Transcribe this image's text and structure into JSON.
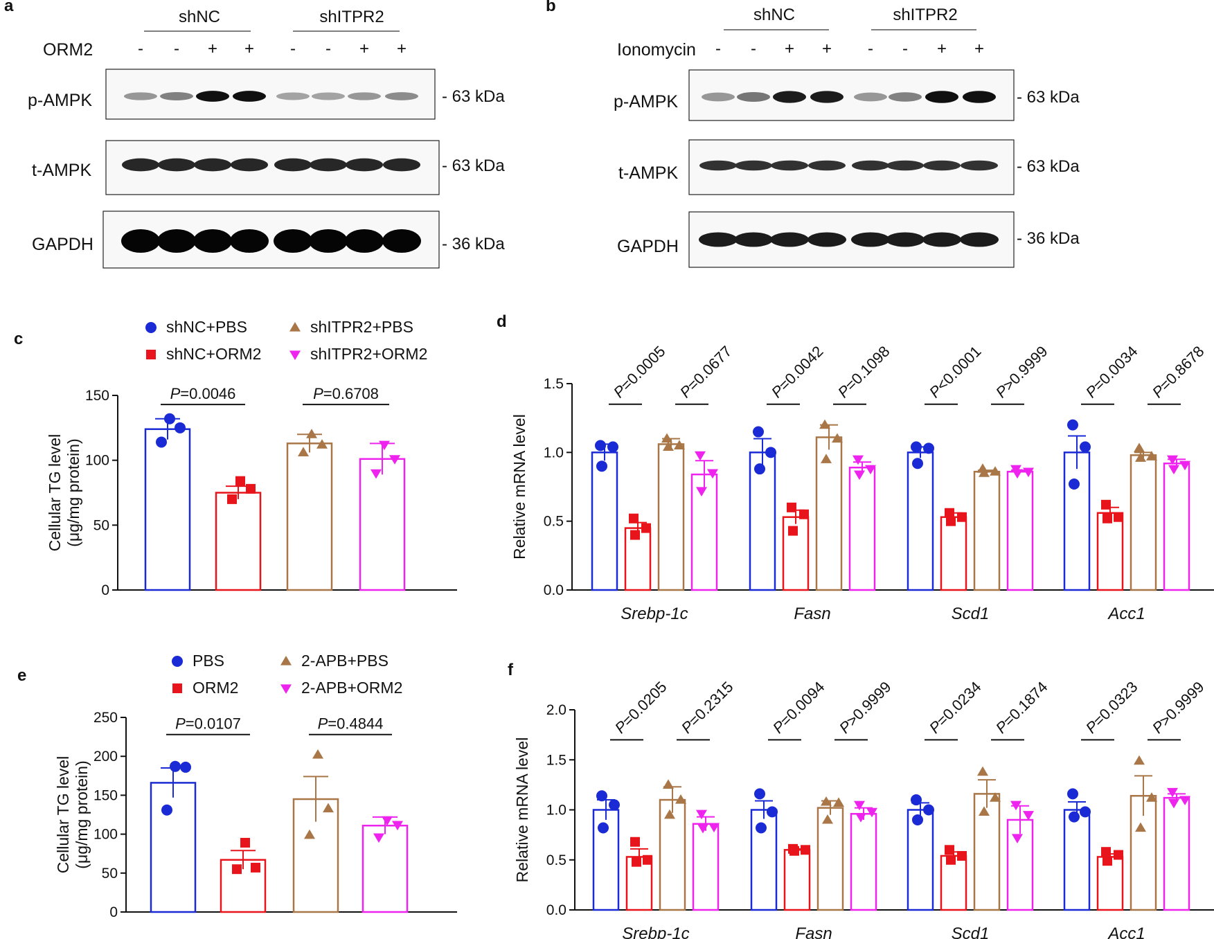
{
  "colors": {
    "blue": "#1a2bd6",
    "red": "#e8141b",
    "brown": "#a87647",
    "magenta": "#ee23ee",
    "dot_blue": "#1f3dde"
  },
  "panel_a": {
    "letter": "a",
    "group_labels": [
      "shNC",
      "shITPR2"
    ],
    "treatment_label": "ORM2",
    "signs": [
      "-",
      "-",
      "+",
      "+",
      "-",
      "-",
      "+",
      "+"
    ],
    "bands": [
      {
        "label": "p-AMPK",
        "kda": "- 63 kDa"
      },
      {
        "label": "t-AMPK",
        "kda": "- 63 kDa"
      },
      {
        "label": "GAPDH",
        "kda": "- 36 kDa"
      }
    ],
    "band_intensity": [
      [
        0.35,
        0.45,
        0.95,
        0.95,
        0.3,
        0.3,
        0.35,
        0.4
      ],
      [
        0.85,
        0.85,
        0.85,
        0.85,
        0.85,
        0.85,
        0.85,
        0.85
      ],
      [
        1,
        1,
        1,
        1,
        1,
        1,
        1,
        1
      ]
    ]
  },
  "panel_b": {
    "letter": "b",
    "group_labels": [
      "shNC",
      "shITPR2"
    ],
    "treatment_label": "Ionomycin",
    "signs": [
      "-",
      "-",
      "+",
      "+",
      "-",
      "-",
      "+",
      "+"
    ],
    "bands": [
      {
        "label": "p-AMPK",
        "kda": "- 63 kDa"
      },
      {
        "label": "t-AMPK",
        "kda": "- 63 kDa"
      },
      {
        "label": "GAPDH",
        "kda": "- 36 kDa"
      }
    ],
    "band_intensity": [
      [
        0.35,
        0.5,
        0.9,
        0.9,
        0.35,
        0.45,
        0.95,
        0.95
      ],
      [
        0.8,
        0.8,
        0.8,
        0.8,
        0.8,
        0.8,
        0.8,
        0.8
      ],
      [
        0.9,
        0.9,
        0.9,
        0.9,
        0.9,
        0.9,
        0.9,
        0.9
      ]
    ]
  },
  "chart_data": [
    {
      "panel": "c",
      "type": "bar",
      "ylabel": "Cellular TG level",
      "ylabel2": "(μg/mg protein)",
      "ylim": [
        0,
        150
      ],
      "yticks": [
        "0",
        "50",
        "100",
        "150"
      ],
      "legend": [
        "shNC+PBS",
        "shNC+ORM2",
        "shITPR2+PBS",
        "shITPR2+ORM2"
      ],
      "series": [
        {
          "name": "shNC+PBS",
          "value": 124,
          "sem": 8,
          "points": [
            132,
            125,
            114
          ]
        },
        {
          "name": "shNC+ORM2",
          "value": 75,
          "sem": 5,
          "points": [
            84,
            78,
            70
          ]
        },
        {
          "name": "shITPR2+PBS",
          "value": 113,
          "sem": 7,
          "points": [
            120,
            112,
            106
          ]
        },
        {
          "name": "shITPR2+ORM2",
          "value": 101,
          "sem": 12,
          "points": [
            112,
            101,
            90
          ]
        }
      ],
      "comparisons": [
        {
          "italic": "P",
          "rest": "=0.0046",
          "pair": [
            0,
            1
          ],
          "y": 143
        },
        {
          "italic": "P",
          "rest": "=0.6708",
          "pair": [
            2,
            3
          ],
          "y": 143
        }
      ]
    },
    {
      "panel": "d",
      "type": "bar",
      "ylabel": "Relative  mRNA level",
      "ylim": [
        0,
        1.5
      ],
      "yticks": [
        "0.0",
        "0.5",
        "1.0",
        "1.5"
      ],
      "categories": [
        "Srebp-1c",
        "Fasn",
        "Scd1",
        "Acc1"
      ],
      "groups": [
        {
          "values": [
            1.0,
            0.45,
            1.06,
            0.84
          ],
          "sem": [
            0.06,
            0.04,
            0.04,
            0.1
          ],
          "points": [
            [
              1.05,
              1.04,
              0.9
            ],
            [
              0.52,
              0.45,
              0.4
            ],
            [
              1.1,
              1.05,
              1.04
            ],
            [
              0.98,
              0.85,
              0.72
            ]
          ]
        },
        {
          "values": [
            1.0,
            0.53,
            1.11,
            0.89
          ],
          "sem": [
            0.1,
            0.05,
            0.09,
            0.04
          ],
          "points": [
            [
              1.15,
              1.0,
              0.88
            ],
            [
              0.6,
              0.55,
              0.43
            ],
            [
              1.2,
              1.1,
              0.95
            ],
            [
              0.95,
              0.88,
              0.84
            ]
          ]
        },
        {
          "values": [
            1.0,
            0.53,
            0.86,
            0.86
          ],
          "sem": [
            0.04,
            0.03,
            0.01,
            0.01
          ],
          "points": [
            [
              1.04,
              1.03,
              0.92
            ],
            [
              0.56,
              0.53,
              0.5
            ],
            [
              0.88,
              0.86,
              0.85
            ],
            [
              0.88,
              0.86,
              0.85
            ]
          ]
        },
        {
          "values": [
            1.0,
            0.56,
            0.98,
            0.92
          ],
          "sem": [
            0.12,
            0.04,
            0.02,
            0.03
          ],
          "points": [
            [
              1.2,
              1.04,
              0.77
            ],
            [
              0.62,
              0.53,
              0.52
            ],
            [
              1.03,
              0.97,
              0.96
            ],
            [
              0.95,
              0.91,
              0.88
            ]
          ]
        }
      ],
      "pvalues": [
        {
          "italic": "P",
          "rest": "=0.0005"
        },
        {
          "italic": "P",
          "rest": "=0.0677"
        },
        {
          "italic": "P",
          "rest": "=0.0042"
        },
        {
          "italic": "P",
          "rest": "=0.1098"
        },
        {
          "italic": "P",
          "rest": "<0.0001"
        },
        {
          "italic": "P",
          "rest": ">0.9999"
        },
        {
          "italic": "P",
          "rest": "=0.0034"
        },
        {
          "italic": "P",
          "rest": "=0.8678"
        }
      ],
      "p_y": 1.35
    },
    {
      "panel": "e",
      "type": "bar",
      "ylabel": "Cellular TG level",
      "ylabel2": "(μg/mg protein)",
      "ylim": [
        0,
        250
      ],
      "yticks": [
        "0",
        "50",
        "100",
        "150",
        "200",
        "250"
      ],
      "legend": [
        "PBS",
        "ORM2",
        "2-APB+PBS",
        "2-APB+ORM2"
      ],
      "series": [
        {
          "name": "PBS",
          "value": 166,
          "sem": 19,
          "points": [
            187,
            186,
            131
          ]
        },
        {
          "name": "ORM2",
          "value": 67,
          "sem": 12,
          "points": [
            89,
            57,
            55
          ]
        },
        {
          "name": "2-APB+PBS",
          "value": 145,
          "sem": 29,
          "points": [
            202,
            133,
            99
          ]
        },
        {
          "name": "2-APB+ORM2",
          "value": 111,
          "sem": 11,
          "points": [
            118,
            112,
            96
          ]
        }
      ],
      "comparisons": [
        {
          "italic": "P",
          "rest": "=0.0107",
          "pair": [
            0,
            1
          ],
          "y": 228
        },
        {
          "italic": "P",
          "rest": "=0.4844",
          "pair": [
            2,
            3
          ],
          "y": 228
        }
      ]
    },
    {
      "panel": "f",
      "type": "bar",
      "ylabel": "Relative  mRNA level",
      "ylim": [
        0,
        2.0
      ],
      "yticks": [
        "0.0",
        "0.5",
        "1.0",
        "1.5",
        "2.0"
      ],
      "categories": [
        "Srebp-1c",
        "Fasn",
        "Scd1",
        "Acc1"
      ],
      "groups": [
        {
          "values": [
            1.0,
            0.53,
            1.1,
            0.86
          ],
          "sem": [
            0.1,
            0.08,
            0.13,
            0.07
          ],
          "points": [
            [
              1.14,
              1.05,
              0.82
            ],
            [
              0.68,
              0.5,
              0.48
            ],
            [
              1.25,
              1.1,
              0.95
            ],
            [
              0.96,
              0.83,
              0.82
            ]
          ]
        },
        {
          "values": [
            1.0,
            0.6,
            1.02,
            0.96
          ],
          "sem": [
            0.09,
            0.01,
            0.07,
            0.06
          ],
          "points": [
            [
              1.16,
              0.98,
              0.82
            ],
            [
              0.61,
              0.6,
              0.59
            ],
            [
              1.08,
              1.07,
              0.9
            ],
            [
              1.05,
              0.98,
              0.93
            ]
          ]
        },
        {
          "values": [
            1.0,
            0.54,
            1.16,
            0.9
          ],
          "sem": [
            0.07,
            0.04,
            0.14,
            0.14
          ],
          "points": [
            [
              1.1,
              1.0,
              0.9
            ],
            [
              0.6,
              0.54,
              0.5
            ],
            [
              1.38,
              1.12,
              0.98
            ],
            [
              1.05,
              0.95,
              0.72
            ]
          ]
        },
        {
          "values": [
            1.0,
            0.53,
            1.14,
            1.12
          ],
          "sem": [
            0.08,
            0.03,
            0.2,
            0.04
          ],
          "points": [
            [
              1.16,
              0.98,
              0.93
            ],
            [
              0.58,
              0.55,
              0.49
            ],
            [
              1.49,
              1.12,
              0.82
            ],
            [
              1.18,
              1.1,
              1.07
            ]
          ]
        }
      ],
      "pvalues": [
        {
          "italic": "P",
          "rest": "=0.0205"
        },
        {
          "italic": "P",
          "rest": "=0.2315"
        },
        {
          "italic": "P",
          "rest": "=0.0094"
        },
        {
          "italic": "P",
          "rest": ">0.9999"
        },
        {
          "italic": "P",
          "rest": "=0.0234"
        },
        {
          "italic": "P",
          "rest": "=0.1874"
        },
        {
          "italic": "P",
          "rest": "=0.0323"
        },
        {
          "italic": "P",
          "rest": ">0.9999"
        }
      ],
      "p_y": 1.7
    }
  ]
}
